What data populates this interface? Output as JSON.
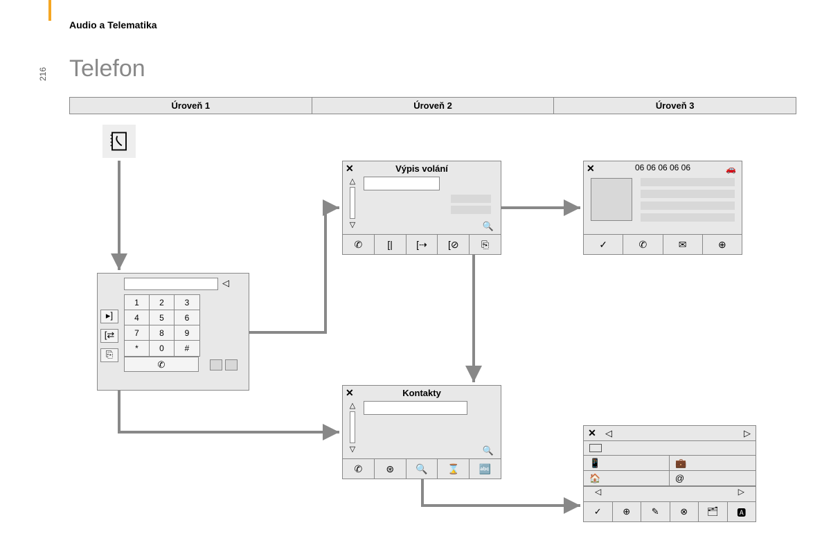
{
  "page": {
    "header": "Audio a Telematika",
    "number": "216",
    "title": "Telefon"
  },
  "levels": {
    "l1": "Úroveň 1",
    "l2": "Úroveň 2",
    "l3": "Úroveň 3"
  },
  "keypad": {
    "keys": [
      [
        "1",
        "2",
        "3"
      ],
      [
        "4",
        "5",
        "6"
      ],
      [
        "7",
        "8",
        "9"
      ],
      [
        "*",
        "0",
        "#"
      ]
    ],
    "back": "◁",
    "call": "✆",
    "side": [
      "▸]",
      "[⇄",
      "⎘"
    ]
  },
  "calllog": {
    "title": "Výpis volání",
    "close": "✕",
    "up": "△",
    "down": "▽",
    "search": "🔍",
    "toolbar": [
      "✆",
      "[|",
      "[⇢",
      "[⊘",
      "⎘"
    ]
  },
  "contacts": {
    "title": "Kontakty",
    "close": "✕",
    "up": "△",
    "down": "▽",
    "search": "🔍",
    "toolbar": [
      "✆",
      "⊛",
      "🔍",
      "⌛",
      "🔤"
    ]
  },
  "detail": {
    "close": "✕",
    "number": "06 06 06 06 06",
    "car": "🚗",
    "toolbar": [
      "✓",
      "✆",
      "✉",
      "⊕"
    ]
  },
  "edit": {
    "close": "✕",
    "left": "◁",
    "right": "▷",
    "fields": [
      {
        "icon": "📱",
        "label": ""
      },
      {
        "icon": "💼",
        "label": ""
      },
      {
        "icon": "🏠",
        "label": ""
      },
      {
        "icon": "@",
        "label": ""
      }
    ],
    "nav": [
      "◁",
      "",
      "",
      "",
      "",
      "▷"
    ],
    "toolbar": [
      "✓",
      "⊕",
      "✎",
      "⊗",
      "🗂",
      "🅰"
    ]
  },
  "colors": {
    "panel_bg": "#e8e8e8",
    "border": "#888888",
    "arrow": "#888888",
    "accent": "#f5a623"
  }
}
